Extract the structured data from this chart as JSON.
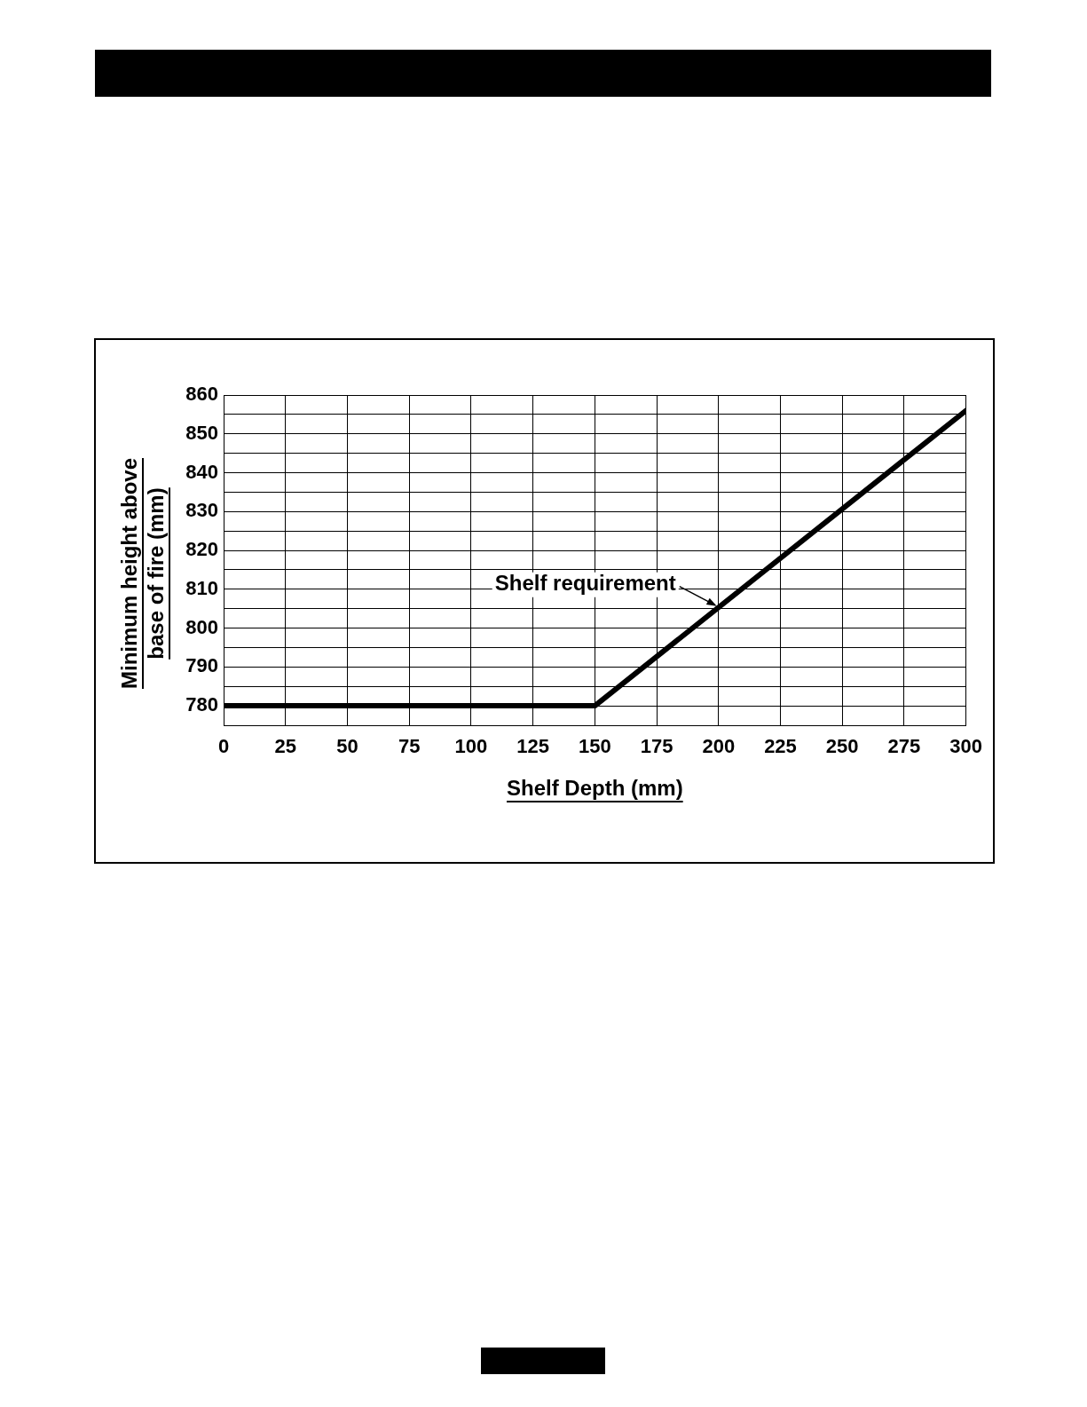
{
  "chart_data": {
    "type": "line",
    "xlabel": "Shelf Depth (mm)",
    "ylabel": "Minimum height above\nbase of fire (mm)",
    "x": [
      0,
      150,
      300
    ],
    "series": [
      {
        "color": "#000000",
        "values": [
          780,
          780,
          856
        ]
      }
    ],
    "xlim": [
      0,
      300
    ],
    "xticks": [
      0,
      25,
      50,
      75,
      100,
      125,
      150,
      175,
      200,
      225,
      250,
      275,
      300
    ],
    "ylim": [
      775,
      860
    ],
    "yticks": [
      {
        "value": 775,
        "label": null
      },
      780,
      {
        "value": 785,
        "label": null
      },
      790,
      {
        "value": 795,
        "label": null
      },
      800,
      {
        "value": 805,
        "label": null
      },
      810,
      {
        "value": 815,
        "label": null
      },
      820,
      {
        "value": 825,
        "label": null
      },
      830,
      {
        "value": 835,
        "label": null
      },
      840,
      {
        "value": 845,
        "label": null
      },
      850,
      {
        "value": 855,
        "label": null
      },
      860
    ],
    "grid": true,
    "legend": false,
    "marker": "none",
    "line_style": "solid",
    "annotations": [
      {
        "text": "Shelf requirement",
        "x": 200,
        "y": 805
      }
    ]
  }
}
